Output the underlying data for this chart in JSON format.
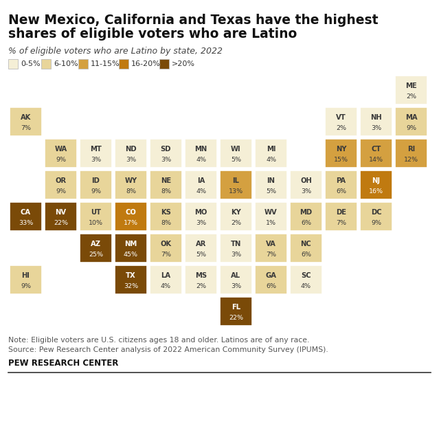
{
  "title_line1": "New Mexico, California and Texas have the highest",
  "title_line2": "shares of eligible voters who are Latino",
  "subtitle": "% of eligible voters who are Latino by state, 2022",
  "note_line1": "Note: Eligible voters are U.S. citizens ages 18 and older. Latinos are of any race.",
  "note_line2": "Source: Pew Research Center analysis of 2022 American Community Survey (IPUMS).",
  "source_label": "PEW RESEARCH CENTER",
  "legend": [
    {
      "label": "0-5%",
      "color": "#f5efd6"
    },
    {
      "label": "6-10%",
      "color": "#e8d59a"
    },
    {
      "label": "11-15%",
      "color": "#d4a040"
    },
    {
      "label": "16-20%",
      "color": "#c07a10"
    },
    {
      "label": ">20%",
      "color": "#7a4a08"
    }
  ],
  "states": [
    {
      "abbr": "ME",
      "value": 2,
      "col": 11,
      "row": 0
    },
    {
      "abbr": "AK",
      "value": 7,
      "col": 0,
      "row": 1
    },
    {
      "abbr": "VT",
      "value": 2,
      "col": 9,
      "row": 1
    },
    {
      "abbr": "NH",
      "value": 3,
      "col": 10,
      "row": 1
    },
    {
      "abbr": "MA",
      "value": 9,
      "col": 11,
      "row": 1
    },
    {
      "abbr": "WA",
      "value": 9,
      "col": 1,
      "row": 2
    },
    {
      "abbr": "MT",
      "value": 3,
      "col": 2,
      "row": 2
    },
    {
      "abbr": "ND",
      "value": 3,
      "col": 3,
      "row": 2
    },
    {
      "abbr": "SD",
      "value": 3,
      "col": 4,
      "row": 2
    },
    {
      "abbr": "MN",
      "value": 4,
      "col": 5,
      "row": 2
    },
    {
      "abbr": "WI",
      "value": 5,
      "col": 6,
      "row": 2
    },
    {
      "abbr": "MI",
      "value": 4,
      "col": 7,
      "row": 2
    },
    {
      "abbr": "NY",
      "value": 15,
      "col": 9,
      "row": 2
    },
    {
      "abbr": "CT",
      "value": 14,
      "col": 10,
      "row": 2
    },
    {
      "abbr": "RI",
      "value": 12,
      "col": 11,
      "row": 2
    },
    {
      "abbr": "OR",
      "value": 9,
      "col": 1,
      "row": 3
    },
    {
      "abbr": "ID",
      "value": 9,
      "col": 2,
      "row": 3
    },
    {
      "abbr": "WY",
      "value": 8,
      "col": 3,
      "row": 3
    },
    {
      "abbr": "NE",
      "value": 8,
      "col": 4,
      "row": 3
    },
    {
      "abbr": "IA",
      "value": 4,
      "col": 5,
      "row": 3
    },
    {
      "abbr": "IL",
      "value": 13,
      "col": 6,
      "row": 3
    },
    {
      "abbr": "IN",
      "value": 5,
      "col": 7,
      "row": 3
    },
    {
      "abbr": "OH",
      "value": 3,
      "col": 8,
      "row": 3
    },
    {
      "abbr": "PA",
      "value": 6,
      "col": 9,
      "row": 3
    },
    {
      "abbr": "NJ",
      "value": 16,
      "col": 10,
      "row": 3
    },
    {
      "abbr": "CA",
      "value": 33,
      "col": 0,
      "row": 4
    },
    {
      "abbr": "NV",
      "value": 22,
      "col": 1,
      "row": 4
    },
    {
      "abbr": "UT",
      "value": 10,
      "col": 2,
      "row": 4
    },
    {
      "abbr": "CO",
      "value": 17,
      "col": 3,
      "row": 4
    },
    {
      "abbr": "KS",
      "value": 8,
      "col": 4,
      "row": 4
    },
    {
      "abbr": "MO",
      "value": 3,
      "col": 5,
      "row": 4
    },
    {
      "abbr": "KY",
      "value": 2,
      "col": 6,
      "row": 4
    },
    {
      "abbr": "WV",
      "value": 1,
      "col": 7,
      "row": 4
    },
    {
      "abbr": "MD",
      "value": 6,
      "col": 8,
      "row": 4
    },
    {
      "abbr": "DE",
      "value": 7,
      "col": 9,
      "row": 4
    },
    {
      "abbr": "DC",
      "value": 9,
      "col": 10,
      "row": 4
    },
    {
      "abbr": "AZ",
      "value": 25,
      "col": 2,
      "row": 5
    },
    {
      "abbr": "NM",
      "value": 45,
      "col": 3,
      "row": 5
    },
    {
      "abbr": "OK",
      "value": 7,
      "col": 4,
      "row": 5
    },
    {
      "abbr": "AR",
      "value": 5,
      "col": 5,
      "row": 5
    },
    {
      "abbr": "TN",
      "value": 3,
      "col": 6,
      "row": 5
    },
    {
      "abbr": "VA",
      "value": 7,
      "col": 7,
      "row": 5
    },
    {
      "abbr": "NC",
      "value": 6,
      "col": 8,
      "row": 5
    },
    {
      "abbr": "HI",
      "value": 9,
      "col": 0,
      "row": 6
    },
    {
      "abbr": "TX",
      "value": 32,
      "col": 3,
      "row": 6
    },
    {
      "abbr": "LA",
      "value": 4,
      "col": 4,
      "row": 6
    },
    {
      "abbr": "MS",
      "value": 2,
      "col": 5,
      "row": 6
    },
    {
      "abbr": "AL",
      "value": 3,
      "col": 6,
      "row": 6
    },
    {
      "abbr": "GA",
      "value": 6,
      "col": 7,
      "row": 6
    },
    {
      "abbr": "SC",
      "value": 4,
      "col": 8,
      "row": 6
    },
    {
      "abbr": "FL",
      "value": 22,
      "col": 6,
      "row": 7
    }
  ],
  "bg_color": "#ffffff",
  "n_cols": 12,
  "n_rows": 8
}
